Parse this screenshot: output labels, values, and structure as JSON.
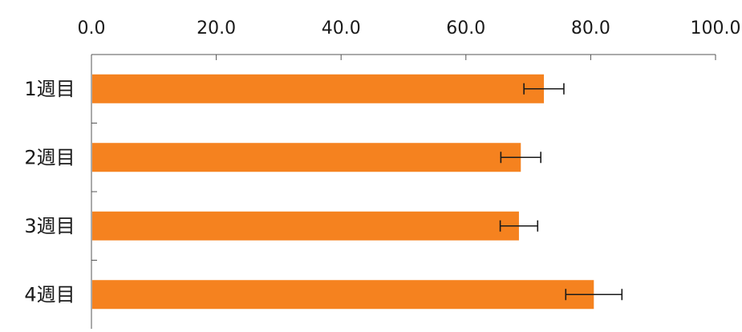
{
  "chart_data": {
    "type": "bar",
    "orientation": "horizontal",
    "categories": [
      "1週目",
      "2週目",
      "3週目",
      "4週目"
    ],
    "series": [
      {
        "values": [
          72.5,
          68.8,
          68.5,
          80.5
        ],
        "error": [
          3.2,
          3.2,
          3.0,
          4.5
        ]
      }
    ],
    "xlim": [
      0,
      100
    ],
    "x_ticks": [
      0,
      20,
      40,
      60,
      80,
      100
    ],
    "x_tick_labels": [
      "0.0",
      "20.0",
      "40.0",
      "60.0",
      "80.0",
      "100.0"
    ],
    "x_axis_position": "top",
    "grid": false,
    "legend": "none",
    "colors": {
      "bar": "#F5821F",
      "axis": "#555555",
      "error_bar": "#1a1a1a"
    }
  }
}
